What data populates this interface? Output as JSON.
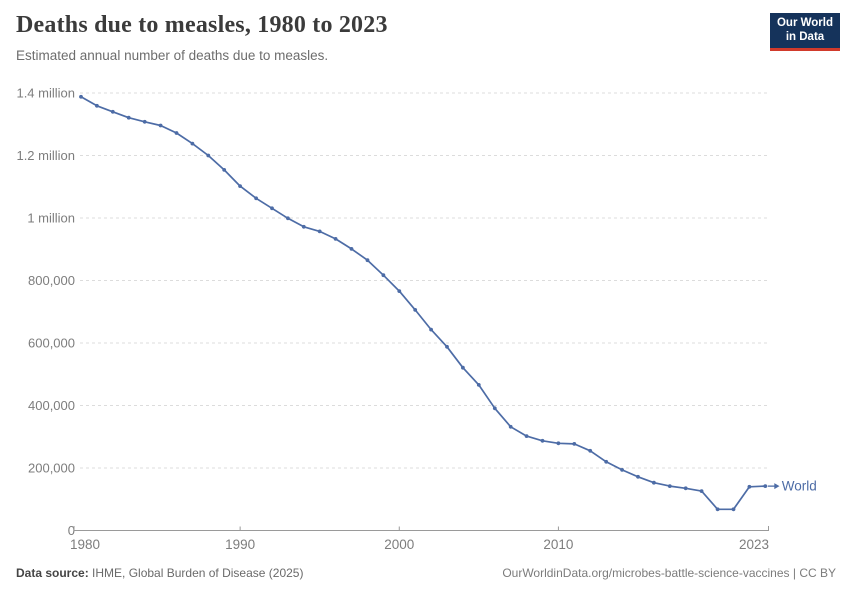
{
  "header": {
    "title": "Deaths due to measles, 1980 to 2023",
    "subtitle": "Estimated annual number of deaths due to measles.",
    "logo": {
      "line1": "Our World",
      "line2": "in Data"
    }
  },
  "chart_data": {
    "type": "line",
    "title": "Deaths due to measles, 1980 to 2023",
    "xlabel": "",
    "ylabel": "",
    "xlim": [
      1980,
      2023
    ],
    "ylim": [
      0,
      1400000
    ],
    "grid": "horizontal-dashed",
    "legend_position": "end-of-line-label",
    "yticks": [
      {
        "value": 0,
        "label": "0"
      },
      {
        "value": 200000,
        "label": "200,000"
      },
      {
        "value": 400000,
        "label": "400,000"
      },
      {
        "value": 600000,
        "label": "600,000"
      },
      {
        "value": 800000,
        "label": "800,000"
      },
      {
        "value": 1000000,
        "label": "1 million"
      },
      {
        "value": 1200000,
        "label": "1.2 million"
      },
      {
        "value": 1400000,
        "label": "1.4 million"
      }
    ],
    "xticks": [
      {
        "value": 1980,
        "label": "1980"
      },
      {
        "value": 1990,
        "label": "1990"
      },
      {
        "value": 2000,
        "label": "2000"
      },
      {
        "value": 2010,
        "label": "2010"
      },
      {
        "value": 2023,
        "label": "2023"
      }
    ],
    "series": [
      {
        "name": "World",
        "color": "#4d6ca6",
        "x": [
          1980,
          1981,
          1982,
          1983,
          1984,
          1985,
          1986,
          1987,
          1988,
          1989,
          1990,
          1991,
          1992,
          1993,
          1994,
          1995,
          1996,
          1997,
          1998,
          1999,
          2000,
          2001,
          2002,
          2003,
          2004,
          2005,
          2006,
          2007,
          2008,
          2009,
          2010,
          2011,
          2012,
          2013,
          2014,
          2015,
          2016,
          2017,
          2018,
          2019,
          2020,
          2021,
          2022,
          2023
        ],
        "values": [
          1388000,
          1359000,
          1340000,
          1321000,
          1308000,
          1296000,
          1272000,
          1238000,
          1200000,
          1154000,
          1102000,
          1063000,
          1031000,
          999000,
          972000,
          957000,
          933000,
          901000,
          865000,
          817000,
          766000,
          706000,
          643000,
          588000,
          521000,
          466000,
          391000,
          332000,
          302000,
          287000,
          279000,
          277000,
          255000,
          220000,
          194000,
          172000,
          153000,
          142000,
          135000,
          126000,
          68000,
          68000,
          140000,
          142000
        ]
      }
    ]
  },
  "footer": {
    "source_label": "Data source:",
    "source_text": " IHME, Global Burden of Disease (2025)",
    "credit": "OurWorldinData.org/microbes-battle-science-vaccines | CC BY"
  },
  "colors": {
    "line": "#4d6ca6",
    "grid": "#dcdcdc",
    "axis": "#9a9a9a",
    "tick_text": "#7d7d7d",
    "logo_bg": "#15335B",
    "logo_accent": "#d13a2b"
  }
}
